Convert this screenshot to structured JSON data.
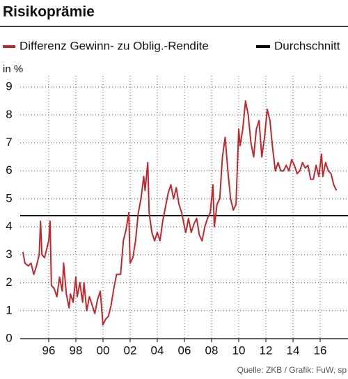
{
  "chart_data": {
    "type": "line",
    "title": "Risikoprämie",
    "y_label": "in %",
    "source": "Quelle: ZKB / Grafik: FuW, sp",
    "x": [
      1994.1,
      1994.25,
      1994.5,
      1994.7,
      1994.9,
      1995.1,
      1995.3,
      1995.4,
      1995.5,
      1995.7,
      1995.9,
      1996.0,
      1996.1,
      1996.2,
      1996.4,
      1996.6,
      1996.8,
      1997.0,
      1997.1,
      1997.3,
      1997.5,
      1997.6,
      1997.8,
      1998.0,
      1998.1,
      1998.3,
      1998.5,
      1998.6,
      1998.8,
      1999.0,
      1999.2,
      1999.4,
      1999.6,
      1999.8,
      2000.0,
      2000.2,
      2000.4,
      2000.6,
      2000.8,
      2001.0,
      2001.3,
      2001.5,
      2001.7,
      2001.9,
      2002.0,
      2002.2,
      2002.4,
      2002.6,
      2002.8,
      2003.0,
      2003.1,
      2003.3,
      2003.4,
      2003.6,
      2003.8,
      2004.0,
      2004.2,
      2004.4,
      2004.6,
      2004.8,
      2005.0,
      2005.2,
      2005.4,
      2005.6,
      2005.8,
      2006.0,
      2006.1,
      2006.3,
      2006.5,
      2006.7,
      2006.9,
      2007.1,
      2007.3,
      2007.5,
      2007.7,
      2007.9,
      2008.1,
      2008.2,
      2008.4,
      2008.6,
      2008.8,
      2009.0,
      2009.2,
      2009.4,
      2009.6,
      2009.8,
      2010.0,
      2010.1,
      2010.3,
      2010.5,
      2010.7,
      2010.9,
      2011.1,
      2011.3,
      2011.5,
      2011.7,
      2011.9,
      2012.1,
      2012.3,
      2012.5,
      2012.7,
      2012.9,
      2013.1,
      2013.3,
      2013.5,
      2013.7,
      2013.9,
      2014.1,
      2014.3,
      2014.5,
      2014.7,
      2014.9,
      2015.1,
      2015.3,
      2015.5,
      2015.7,
      2015.9,
      2016.1,
      2016.2,
      2016.4,
      2016.6,
      2016.8,
      2017.0,
      2017.2
    ],
    "series": [
      {
        "name": "Differenz Gewinn- zu Oblig.-Rendite",
        "color": "#c0282d",
        "values": [
          3.1,
          2.7,
          2.6,
          2.7,
          2.3,
          2.6,
          3.0,
          4.2,
          3.0,
          2.9,
          3.3,
          3.5,
          4.2,
          1.9,
          1.8,
          1.5,
          2.2,
          1.7,
          2.7,
          1.6,
          1.1,
          1.6,
          1.3,
          2.2,
          1.5,
          2.0,
          1.3,
          2.0,
          1.0,
          1.5,
          1.2,
          0.9,
          1.4,
          1.7,
          0.5,
          0.7,
          0.8,
          1.2,
          1.8,
          2.3,
          2.3,
          3.5,
          3.9,
          4.5,
          2.7,
          2.9,
          3.5,
          4.5,
          5.0,
          5.8,
          5.3,
          6.3,
          4.5,
          3.8,
          3.5,
          3.8,
          3.5,
          4.2,
          4.7,
          5.2,
          5.5,
          5.0,
          5.4,
          4.8,
          4.5,
          4.0,
          3.8,
          4.3,
          3.8,
          4.1,
          4.3,
          3.7,
          3.5,
          4.0,
          4.3,
          4.5,
          5.5,
          4.0,
          4.8,
          5.0,
          6.5,
          7.2,
          6.0,
          5.0,
          4.6,
          4.8,
          7.5,
          6.9,
          7.5,
          8.5,
          8.0,
          7.0,
          6.5,
          7.5,
          7.8,
          6.5,
          7.2,
          8.2,
          7.8,
          6.8,
          6.0,
          6.3,
          6.0,
          6.0,
          6.2,
          6.0,
          6.4,
          6.2,
          5.9,
          6.0,
          6.3,
          6.1,
          6.2,
          5.7,
          5.7,
          6.2,
          5.8,
          6.6,
          5.8,
          6.3,
          6.0,
          5.9,
          5.5,
          5.3
        ]
      }
    ],
    "average": {
      "name": "Durchschnitt",
      "value": 4.4,
      "color": "#000000"
    },
    "xlim": [
      1993.9,
      2018.05
    ],
    "ylim": [
      0,
      9.4
    ],
    "xticks": [
      {
        "value": 1996,
        "label": "96"
      },
      {
        "value": 1998,
        "label": "98"
      },
      {
        "value": 2000,
        "label": "00"
      },
      {
        "value": 2002,
        "label": "02"
      },
      {
        "value": 2004,
        "label": "04"
      },
      {
        "value": 2006,
        "label": "06"
      },
      {
        "value": 2008,
        "label": "08"
      },
      {
        "value": 2010,
        "label": "10"
      },
      {
        "value": 2012,
        "label": "12"
      },
      {
        "value": 2014,
        "label": "14"
      },
      {
        "value": 2016,
        "label": "16"
      }
    ],
    "yticks": [
      0,
      1,
      2,
      3,
      4,
      5,
      6,
      7,
      8,
      9
    ],
    "grid": true
  }
}
